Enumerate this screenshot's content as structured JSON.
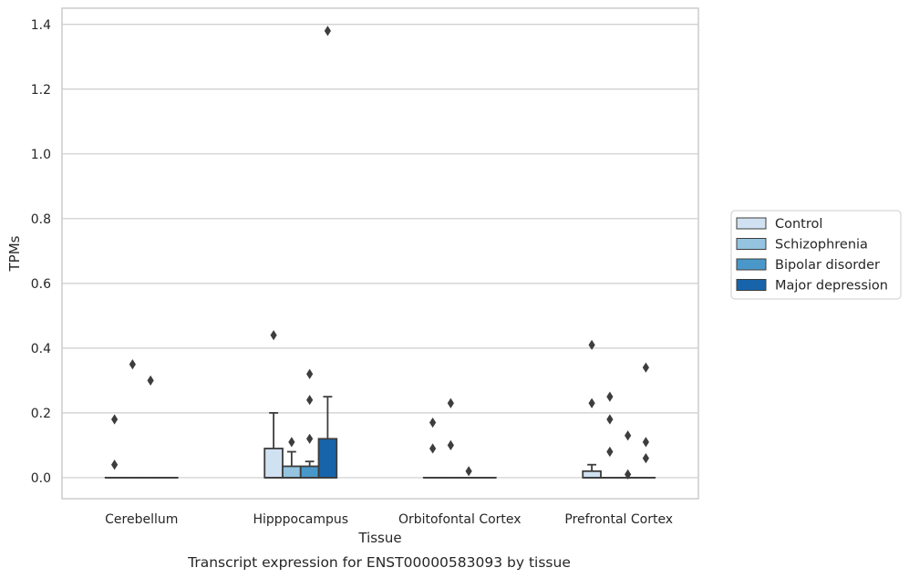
{
  "caption": "Transcript expression for ENST00000583093 by tissue",
  "chart_data": {
    "type": "box",
    "xlabel": "Tissue",
    "ylabel": "TPMs",
    "ylim": [
      -0.065,
      1.45
    ],
    "yticks": [
      0.0,
      0.2,
      0.4,
      0.6,
      0.8,
      1.0,
      1.2,
      1.4
    ],
    "ytick_labels": [
      "0.0",
      "0.2",
      "0.4",
      "0.6",
      "0.8",
      "1.0",
      "1.2",
      "1.4"
    ],
    "grid": "horizontal",
    "legend_position": "right",
    "categories": [
      "Cerebellum",
      "Hipppocampus",
      "Orbitofontal Cortex",
      "Prefrontal Cortex"
    ],
    "series": [
      {
        "name": "Control",
        "color": "#d0e1f2",
        "boxes": [
          {
            "q1": 0,
            "median": 0,
            "q3": 0,
            "whislo": 0,
            "whishi": 0,
            "fliers": [
              0.18,
              0.04
            ]
          },
          {
            "q1": 0,
            "median": 0,
            "q3": 0.09,
            "whislo": 0,
            "whishi": 0.2,
            "fliers": [
              0.44
            ]
          },
          {
            "q1": 0,
            "median": 0,
            "q3": 0,
            "whislo": 0,
            "whishi": 0,
            "fliers": [
              0.17,
              0.09
            ]
          },
          {
            "q1": 0,
            "median": 0,
            "q3": 0.02,
            "whislo": 0,
            "whishi": 0.04,
            "fliers": [
              0.41,
              0.23
            ]
          }
        ]
      },
      {
        "name": "Schizophrenia",
        "color": "#94c4df",
        "boxes": [
          {
            "q1": 0,
            "median": 0,
            "q3": 0,
            "whislo": 0,
            "whishi": 0,
            "fliers": [
              0.35
            ]
          },
          {
            "q1": 0,
            "median": 0,
            "q3": 0.035,
            "whislo": 0,
            "whishi": 0.08,
            "fliers": [
              0.11
            ]
          },
          {
            "q1": 0,
            "median": 0,
            "q3": 0,
            "whislo": 0,
            "whishi": 0,
            "fliers": [
              0.23,
              0.1
            ]
          },
          {
            "q1": 0,
            "median": 0,
            "q3": 0,
            "whislo": 0,
            "whishi": 0,
            "fliers": [
              0.25,
              0.18,
              0.08
            ]
          }
        ]
      },
      {
        "name": "Bipolar disorder",
        "color": "#4a98c9",
        "boxes": [
          {
            "q1": 0,
            "median": 0,
            "q3": 0,
            "whislo": 0,
            "whishi": 0,
            "fliers": [
              0.3
            ]
          },
          {
            "q1": 0,
            "median": 0,
            "q3": 0.035,
            "whislo": 0,
            "whishi": 0.05,
            "fliers": [
              0.32,
              0.24,
              0.12
            ]
          },
          {
            "q1": 0,
            "median": 0,
            "q3": 0,
            "whislo": 0,
            "whishi": 0,
            "fliers": [
              0.02
            ]
          },
          {
            "q1": 0,
            "median": 0,
            "q3": 0,
            "whislo": 0,
            "whishi": 0,
            "fliers": [
              0.13,
              0.01
            ]
          }
        ]
      },
      {
        "name": "Major depression",
        "color": "#1764ab",
        "boxes": [
          {
            "q1": 0,
            "median": 0,
            "q3": 0,
            "whislo": 0,
            "whishi": 0,
            "fliers": []
          },
          {
            "q1": 0,
            "median": 0,
            "q3": 0.12,
            "whislo": 0,
            "whishi": 0.25,
            "fliers": [
              1.38
            ]
          },
          {
            "q1": 0,
            "median": 0,
            "q3": 0,
            "whislo": 0,
            "whishi": 0,
            "fliers": []
          },
          {
            "q1": 0,
            "median": 0,
            "q3": 0,
            "whislo": 0,
            "whishi": 0,
            "fliers": [
              0.34,
              0.11,
              0.06
            ]
          }
        ]
      }
    ]
  }
}
